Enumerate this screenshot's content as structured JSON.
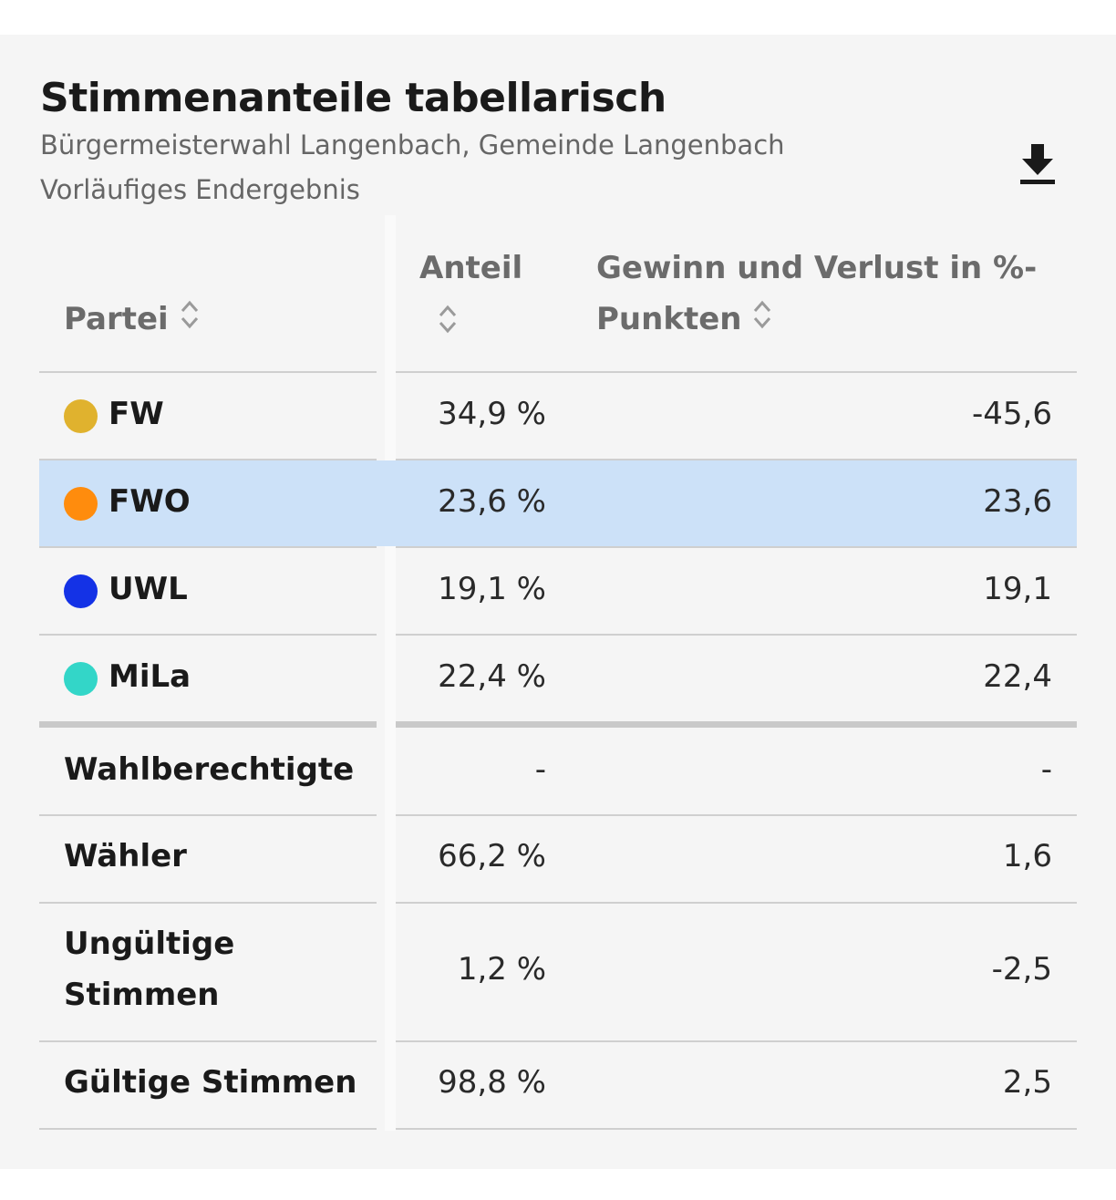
{
  "card": {
    "title": "Stimmenanteile tabellarisch",
    "subtitle_line1": "Bürgermeisterwahl Langenbach, Gemeinde Langenbach",
    "subtitle_line2": "Vorläufiges Endergebnis",
    "download_icon": "download-icon"
  },
  "table": {
    "headers": {
      "party": "Partei",
      "share": "Anteil",
      "change_line1": "Gewinn und Verlust in %-",
      "change_line2": "Punkten"
    },
    "parties": [
      {
        "name": "FW",
        "color": "#e0b22e",
        "share": "34,9 %",
        "change": "-45,6",
        "highlighted": false
      },
      {
        "name": "FWO",
        "color": "#ff8c0d",
        "share": "23,6 %",
        "change": "23,6",
        "highlighted": true
      },
      {
        "name": "UWL",
        "color": "#1432e6",
        "share": "19,1 %",
        "change": "19,1",
        "highlighted": false
      },
      {
        "name": "MiLa",
        "color": "#33d6c8",
        "share": "22,4 %",
        "change": "22,4",
        "highlighted": false
      }
    ],
    "stats": [
      {
        "label": "Wahlberechtigte",
        "share": "-",
        "change": "-"
      },
      {
        "label": "Wähler",
        "share": "66,2 %",
        "change": "1,6"
      },
      {
        "label": "Ungültige Stimmen",
        "share": "1,2 %",
        "change": "-2,5"
      },
      {
        "label": "Gültige Stimmen",
        "share": "98,8 %",
        "change": "2,5"
      }
    ]
  },
  "colors": {
    "highlight": "#cce1f8",
    "panel_bg": "#f5f5f5"
  }
}
